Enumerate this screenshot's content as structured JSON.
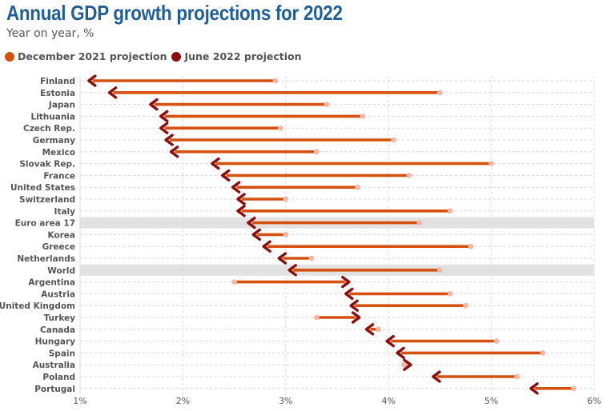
{
  "title": "Annual GDP growth projections for 2022",
  "subtitle": "Year on year, %",
  "colors": {
    "december": "#d4510f",
    "june": "#8b0d0d",
    "dec_dot": "#f2b8aa",
    "highlight": "#e2e2e2",
    "title": "#1f5e96"
  },
  "chart_data": {
    "type": "dumbbell",
    "title": "Annual GDP growth projections for 2022",
    "subtitle": "Year on year, %",
    "legend_position": "top-left",
    "grid": true,
    "xlim": [
      1,
      6
    ],
    "x_ticks": [
      "1%",
      "2%",
      "3%",
      "4%",
      "5%",
      "6%"
    ],
    "x_tick_values": [
      1,
      2,
      3,
      4,
      5,
      6
    ],
    "series": [
      {
        "name": "December 2021 projection",
        "key": "dec"
      },
      {
        "name": "June 2022 projection",
        "key": "jun"
      }
    ],
    "highlighted": [
      "Euro area 17",
      "World"
    ],
    "rows": [
      {
        "country": "Finland",
        "dec": 2.9,
        "jun": 1.1
      },
      {
        "country": "Estonia",
        "dec": 4.5,
        "jun": 1.3
      },
      {
        "country": "Japan",
        "dec": 3.4,
        "jun": 1.7
      },
      {
        "country": "Lithuania",
        "dec": 3.75,
        "jun": 1.8
      },
      {
        "country": "Czech Rep.",
        "dec": 2.95,
        "jun": 1.8
      },
      {
        "country": "Germany",
        "dec": 4.05,
        "jun": 1.85
      },
      {
        "country": "Mexico",
        "dec": 3.3,
        "jun": 1.9
      },
      {
        "country": "Slovak Rep.",
        "dec": 5.0,
        "jun": 2.3
      },
      {
        "country": "France",
        "dec": 4.2,
        "jun": 2.4
      },
      {
        "country": "United States",
        "dec": 3.7,
        "jun": 2.5
      },
      {
        "country": "Switzerland",
        "dec": 3.0,
        "jun": 2.55
      },
      {
        "country": "Italy",
        "dec": 4.6,
        "jun": 2.55
      },
      {
        "country": "Euro area 17",
        "dec": 4.3,
        "jun": 2.65
      },
      {
        "country": "Korea",
        "dec": 3.0,
        "jun": 2.7
      },
      {
        "country": "Greece",
        "dec": 4.8,
        "jun": 2.8
      },
      {
        "country": "Netherlands",
        "dec": 3.25,
        "jun": 2.95
      },
      {
        "country": "World",
        "dec": 4.5,
        "jun": 3.05
      },
      {
        "country": "Argentina",
        "dec": 2.5,
        "jun": 3.6
      },
      {
        "country": "Austria",
        "dec": 4.6,
        "jun": 3.6
      },
      {
        "country": "United Kingdom",
        "dec": 4.75,
        "jun": 3.65
      },
      {
        "country": "Turkey",
        "dec": 3.3,
        "jun": 3.7
      },
      {
        "country": "Canada",
        "dec": 3.9,
        "jun": 3.8
      },
      {
        "country": "Hungary",
        "dec": 5.05,
        "jun": 4.0
      },
      {
        "country": "Spain",
        "dec": 5.5,
        "jun": 4.1
      },
      {
        "country": "Australia",
        "dec": 4.15,
        "jun": 4.2
      },
      {
        "country": "Poland",
        "dec": 5.25,
        "jun": 4.45
      },
      {
        "country": "Portugal",
        "dec": 5.8,
        "jun": 5.4
      }
    ]
  }
}
